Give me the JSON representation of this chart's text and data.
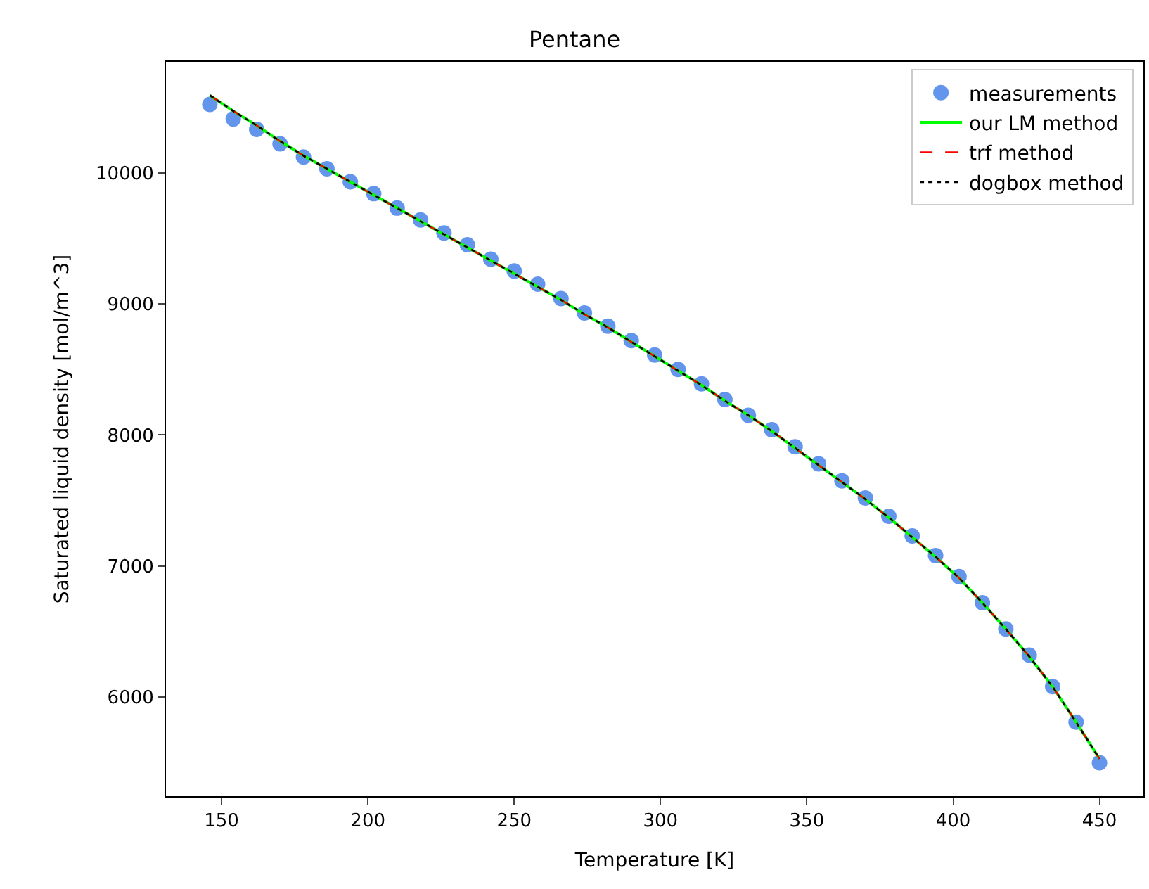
{
  "chart_data": {
    "type": "scatter",
    "title": "Pentane",
    "xlabel": "Temperature [K]",
    "ylabel": "Saturated liquid density [mol/m^3]",
    "x": [
      146,
      154,
      162,
      170,
      178,
      186,
      194,
      202,
      210,
      218,
      226,
      234,
      242,
      250,
      258,
      266,
      274,
      282,
      290,
      298,
      306,
      314,
      322,
      330,
      338,
      346,
      354,
      362,
      370,
      378,
      386,
      394,
      402,
      410,
      418,
      426,
      434,
      442,
      450
    ],
    "series": [
      {
        "name": "measurements",
        "marker": "circle",
        "color": "#6495ed",
        "values": [
          10520,
          10410,
          10330,
          10220,
          10120,
          10030,
          9930,
          9840,
          9730,
          9640,
          9540,
          9450,
          9340,
          9250,
          9150,
          9040,
          8930,
          8830,
          8720,
          8610,
          8500,
          8390,
          8270,
          8150,
          8040,
          7910,
          7780,
          7650,
          7520,
          7380,
          7230,
          7080,
          6920,
          6720,
          6520,
          6320,
          6080,
          5810,
          5500
        ]
      },
      {
        "name": "our LM method",
        "type": "line",
        "line_style": "solid",
        "color": "#00ff00",
        "values": [
          10590,
          10470,
          10360,
          10240,
          10130,
          10030,
          9930,
          9830,
          9730,
          9630,
          9530,
          9430,
          9330,
          9230,
          9130,
          9030,
          8920,
          8820,
          8710,
          8600,
          8490,
          8380,
          8260,
          8150,
          8030,
          7900,
          7770,
          7640,
          7510,
          7370,
          7220,
          7070,
          6910,
          6720,
          6520,
          6310,
          6080,
          5810,
          5530
        ]
      },
      {
        "name": "trf method",
        "type": "line",
        "line_style": "dashed",
        "color": "#ff0000",
        "values": [
          10590,
          10470,
          10360,
          10240,
          10130,
          10030,
          9930,
          9830,
          9730,
          9630,
          9530,
          9430,
          9330,
          9230,
          9130,
          9030,
          8920,
          8820,
          8710,
          8600,
          8490,
          8380,
          8260,
          8150,
          8030,
          7900,
          7770,
          7640,
          7510,
          7370,
          7220,
          7070,
          6910,
          6720,
          6520,
          6310,
          6080,
          5810,
          5530
        ]
      },
      {
        "name": "dogbox method",
        "type": "line",
        "line_style": "dotted",
        "color": "#000000",
        "values": [
          10590,
          10470,
          10360,
          10240,
          10130,
          10030,
          9930,
          9830,
          9730,
          9630,
          9530,
          9430,
          9330,
          9230,
          9130,
          9030,
          8920,
          8820,
          8710,
          8600,
          8490,
          8380,
          8260,
          8150,
          8030,
          7900,
          7770,
          7640,
          7510,
          7370,
          7220,
          7070,
          6910,
          6720,
          6520,
          6310,
          6080,
          5810,
          5530
        ]
      }
    ],
    "xlim": [
      131,
      465
    ],
    "xticks": [
      150,
      200,
      250,
      300,
      350,
      400,
      450
    ],
    "ylim": [
      5245,
      10845
    ],
    "yticks": [
      6000,
      7000,
      8000,
      9000,
      10000
    ],
    "grid": false,
    "legend": "top right"
  }
}
